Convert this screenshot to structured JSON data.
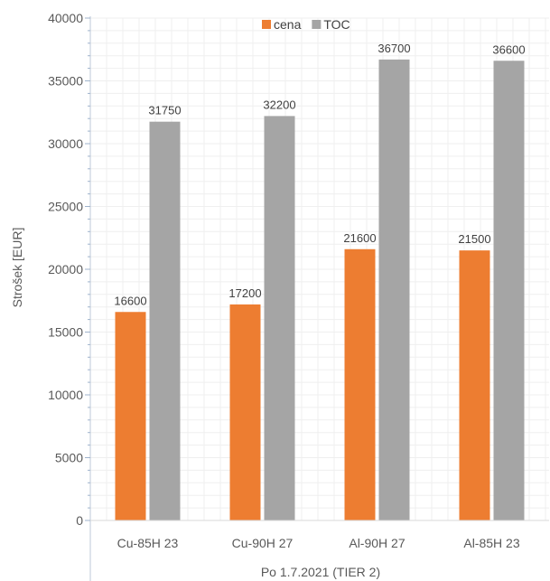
{
  "chart_data": {
    "type": "bar",
    "categories": [
      "Cu-85H 23",
      "Cu-90H 27",
      "Al-90H 27",
      "Al-85H 23"
    ],
    "series": [
      {
        "name": "cena",
        "color": "#ED7D31",
        "values": [
          16600,
          17200,
          21600,
          21500
        ]
      },
      {
        "name": "TOC",
        "color": "#A5A5A5",
        "values": [
          31750,
          32200,
          36700,
          36600
        ]
      }
    ],
    "xlabel": "Po 1.7.2021 (TIER 2)",
    "ylabel": "Strošek [EUR]",
    "ylim": [
      0,
      40000
    ],
    "yticks": [
      0,
      5000,
      10000,
      15000,
      20000,
      25000,
      30000,
      35000,
      40000
    ],
    "grid": true,
    "legend": "top-center"
  }
}
